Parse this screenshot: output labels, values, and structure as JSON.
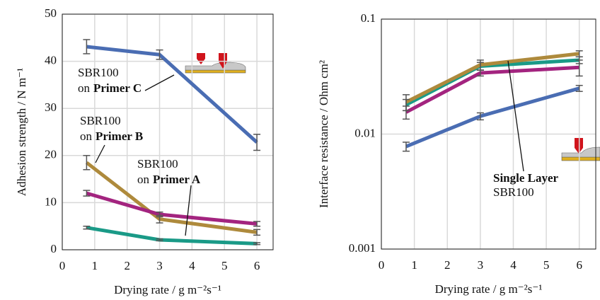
{
  "chart_data": [
    {
      "type": "line",
      "xlabel": "Drying rate / g m⁻²s⁻¹",
      "ylabel": "Adhesion strength / N m⁻¹",
      "x": [
        0.75,
        3,
        6
      ],
      "xlim": [
        0,
        6.5
      ],
      "xticks": [
        0,
        1,
        2,
        3,
        4,
        5,
        6
      ],
      "ylim": [
        0,
        50
      ],
      "yticks": [
        0,
        10,
        20,
        30,
        40,
        50
      ],
      "log_y": false,
      "grid": true,
      "series": [
        {
          "color": "#4a6db3",
          "values": [
            43.1,
            41.4,
            22.8
          ],
          "errors": [
            1.5,
            1.0,
            1.7
          ]
        },
        {
          "color": "#ae8a3c",
          "values": [
            18.5,
            6.5,
            3.7
          ],
          "errors": [
            1.5,
            0.8,
            0.6
          ]
        },
        {
          "color": "#a3247f",
          "values": [
            12.0,
            7.5,
            5.5
          ],
          "errors": [
            0.6,
            0.5,
            0.5
          ]
        },
        {
          "color": "#1a9a87",
          "values": [
            4.7,
            2.1,
            1.3
          ],
          "errors": [
            0.3,
            0.2,
            0.2
          ]
        }
      ],
      "annotations": [
        {
          "line1": "SBR100",
          "prefix": "on",
          "bold": "Primer C"
        },
        {
          "line1": "SBR100",
          "prefix": "on",
          "bold": "Primer B"
        },
        {
          "line1": "SBR100",
          "prefix": "on",
          "bold": "Primer A"
        }
      ]
    },
    {
      "type": "line",
      "xlabel": "Drying rate / g m⁻²s⁻¹",
      "ylabel": "Interface resistance / Ohm cm²",
      "x": [
        0.75,
        3,
        6
      ],
      "xlim": [
        0,
        6.5
      ],
      "xticks": [
        0,
        1,
        2,
        3,
        4,
        5,
        6
      ],
      "ylim": [
        0.001,
        0.1
      ],
      "yticks": [
        0.001,
        0.01,
        0.1
      ],
      "log_y": true,
      "grid": true,
      "series": [
        {
          "color": "#4a6db3",
          "values": [
            0.0078,
            0.0143,
            0.025
          ],
          "errors": [
            0.0007,
            0.001,
            0.0015
          ]
        },
        {
          "color": "#a3247f",
          "values": [
            0.0155,
            0.034,
            0.038
          ],
          "errors": [
            0.002,
            0.002,
            0.006
          ]
        },
        {
          "color": "#1a9a87",
          "values": [
            0.018,
            0.039,
            0.044
          ],
          "errors": [
            0.002,
            0.003,
            0.003
          ]
        },
        {
          "color": "#ae8a3c",
          "values": [
            0.019,
            0.04,
            0.05
          ],
          "errors": [
            0.003,
            0.004,
            0.003
          ]
        }
      ],
      "annotations": [
        {
          "bold": "Single Layer",
          "line2": "SBR100"
        }
      ]
    }
  ]
}
